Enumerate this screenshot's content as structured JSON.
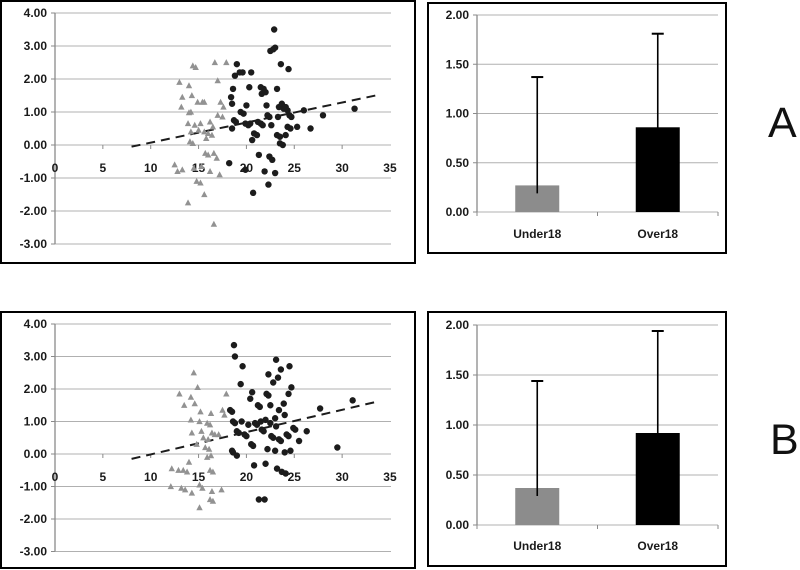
{
  "labels": {
    "a": "A",
    "b": "B"
  },
  "colors": {
    "grid": "#b0b0b0",
    "axis": "#8a8a8a",
    "text": "#1a1a1a",
    "frame": "#000000",
    "trend": "#1c1c1c",
    "under18_point": "#929292",
    "over18_point": "#1c1c1c",
    "under18_bar": "#8c8c8c",
    "over18_bar": "#000000"
  },
  "chart_data": [
    {
      "id": "scatter_a",
      "type": "scatter",
      "panel": "A",
      "title": "",
      "xlabel": "",
      "ylabel": "",
      "xlim": [
        0,
        35
      ],
      "ylim": [
        -3,
        4
      ],
      "xticks": [
        0,
        5,
        10,
        15,
        20,
        25,
        30,
        35
      ],
      "yticks": [
        4,
        3,
        2,
        1,
        0,
        -1,
        -2,
        -3
      ],
      "grid": true,
      "trendline": {
        "style": "dashed",
        "x1": 8,
        "y1": -0.05,
        "x2": 33.5,
        "y2": 1.5
      },
      "series": [
        {
          "name": "Under18",
          "marker": "triangle",
          "color_key": "under18_point",
          "points": [
            [
              14.4,
              2.4
            ],
            [
              14.7,
              2.35
            ],
            [
              16.7,
              2.5
            ],
            [
              17.9,
              2.5
            ],
            [
              13.0,
              1.9
            ],
            [
              14.0,
              1.8
            ],
            [
              17.0,
              1.95
            ],
            [
              14.3,
              1.5
            ],
            [
              13.3,
              1.45
            ],
            [
              14.9,
              1.3
            ],
            [
              15.4,
              1.3
            ],
            [
              15.6,
              1.3
            ],
            [
              13.2,
              1.15
            ],
            [
              14.2,
              1.0
            ],
            [
              17.3,
              1.3
            ],
            [
              17.6,
              1.15
            ],
            [
              17.0,
              0.9
            ],
            [
              17.5,
              0.85
            ],
            [
              14.0,
              0.98
            ],
            [
              13.9,
              0.65
            ],
            [
              14.6,
              0.6
            ],
            [
              15.2,
              0.65
            ],
            [
              16.2,
              0.7
            ],
            [
              16.5,
              0.55
            ],
            [
              14.2,
              0.4
            ],
            [
              15.0,
              0.45
            ],
            [
              15.6,
              0.4
            ],
            [
              16.0,
              0.35
            ],
            [
              14.1,
              0.1
            ],
            [
              14.4,
              0.05
            ],
            [
              15.8,
              0.2
            ],
            [
              16.4,
              0.3
            ],
            [
              15.7,
              -0.25
            ],
            [
              16.0,
              -0.3
            ],
            [
              16.6,
              -0.25
            ],
            [
              16.9,
              -0.4
            ],
            [
              12.5,
              -0.6
            ],
            [
              12.8,
              -0.8
            ],
            [
              13.3,
              -0.75
            ],
            [
              14.5,
              -0.7
            ],
            [
              15.3,
              -0.65
            ],
            [
              16.2,
              -0.8
            ],
            [
              17.2,
              -0.9
            ],
            [
              14.8,
              -1.1
            ],
            [
              15.2,
              -1.15
            ],
            [
              15.6,
              -1.5
            ],
            [
              13.9,
              -1.75
            ],
            [
              16.6,
              -2.4
            ]
          ]
        },
        {
          "name": "Over18",
          "marker": "circle",
          "color_key": "over18_point",
          "points": [
            [
              22.9,
              3.5
            ],
            [
              22.5,
              2.85
            ],
            [
              23.0,
              2.95
            ],
            [
              22.8,
              2.9
            ],
            [
              19.0,
              2.45
            ],
            [
              23.6,
              2.45
            ],
            [
              24.4,
              2.3
            ],
            [
              19.3,
              2.2
            ],
            [
              19.6,
              2.2
            ],
            [
              20.5,
              2.2
            ],
            [
              18.8,
              2.1
            ],
            [
              20.3,
              1.75
            ],
            [
              18.6,
              1.7
            ],
            [
              21.5,
              1.75
            ],
            [
              21.8,
              1.7
            ],
            [
              21.6,
              1.55
            ],
            [
              22.0,
              1.6
            ],
            [
              23.2,
              1.7
            ],
            [
              18.4,
              1.45
            ],
            [
              18.5,
              1.25
            ],
            [
              20.0,
              1.2
            ],
            [
              22.1,
              1.2
            ],
            [
              23.4,
              1.15
            ],
            [
              23.7,
              1.25
            ],
            [
              23.9,
              1.1
            ],
            [
              24.1,
              1.15
            ],
            [
              24.3,
              1.05
            ],
            [
              26.0,
              1.05
            ],
            [
              31.3,
              1.1
            ],
            [
              28.0,
              0.9
            ],
            [
              19.4,
              1.0
            ],
            [
              19.7,
              0.95
            ],
            [
              22.2,
              0.9
            ],
            [
              22.4,
              0.85
            ],
            [
              23.3,
              0.85
            ],
            [
              24.5,
              0.9
            ],
            [
              24.7,
              0.85
            ],
            [
              18.7,
              0.75
            ],
            [
              18.9,
              0.7
            ],
            [
              19.9,
              0.65
            ],
            [
              20.2,
              0.6
            ],
            [
              20.4,
              0.65
            ],
            [
              21.2,
              0.7
            ],
            [
              21.5,
              0.65
            ],
            [
              21.7,
              0.6
            ],
            [
              22.6,
              0.6
            ],
            [
              24.3,
              0.55
            ],
            [
              24.6,
              0.5
            ],
            [
              25.3,
              0.55
            ],
            [
              26.7,
              0.5
            ],
            [
              18.5,
              0.5
            ],
            [
              20.8,
              0.35
            ],
            [
              21.1,
              0.3
            ],
            [
              23.2,
              0.3
            ],
            [
              23.5,
              0.25
            ],
            [
              24.1,
              0.3
            ],
            [
              20.6,
              0.15
            ],
            [
              23.5,
              0.05
            ],
            [
              23.8,
              0.0
            ],
            [
              21.3,
              -0.3
            ],
            [
              22.4,
              -0.35
            ],
            [
              22.7,
              -0.45
            ],
            [
              18.2,
              -0.55
            ],
            [
              19.9,
              -0.75
            ],
            [
              21.9,
              -0.8
            ],
            [
              23.0,
              -0.85
            ],
            [
              22.3,
              -1.2
            ],
            [
              20.7,
              -1.45
            ]
          ]
        }
      ]
    },
    {
      "id": "bar_a",
      "type": "bar",
      "panel": "A",
      "title": "",
      "xlabel": "",
      "ylabel": "",
      "categories": [
        "Under18",
        "Over18"
      ],
      "values": [
        0.27,
        0.86
      ],
      "error_top": [
        1.37,
        1.81
      ],
      "ylim": [
        0,
        2
      ],
      "yticks": [
        2,
        1.5,
        1,
        0.5,
        0
      ],
      "grid": true,
      "bar_color_keys": [
        "under18_bar",
        "over18_bar"
      ]
    },
    {
      "id": "scatter_b",
      "type": "scatter",
      "panel": "B",
      "title": "",
      "xlabel": "",
      "ylabel": "",
      "xlim": [
        0,
        35
      ],
      "ylim": [
        -3,
        4
      ],
      "xticks": [
        0,
        5,
        10,
        15,
        20,
        25,
        30,
        35
      ],
      "yticks": [
        4,
        3,
        2,
        1,
        0,
        -1,
        -2,
        -3
      ],
      "grid": true,
      "trendline": {
        "style": "dashed",
        "x1": 8,
        "y1": -0.15,
        "x2": 33.5,
        "y2": 1.6
      },
      "series": [
        {
          "name": "Under18",
          "marker": "triangle",
          "color_key": "under18_point",
          "points": [
            [
              14.5,
              2.5
            ],
            [
              14.9,
              2.05
            ],
            [
              13.0,
              1.85
            ],
            [
              14.2,
              1.75
            ],
            [
              14.6,
              1.55
            ],
            [
              13.5,
              1.5
            ],
            [
              17.9,
              1.85
            ],
            [
              15.2,
              1.3
            ],
            [
              16.3,
              1.25
            ],
            [
              17.5,
              1.35
            ],
            [
              17.7,
              1.2
            ],
            [
              14.2,
              1.05
            ],
            [
              15.1,
              1.0
            ],
            [
              15.9,
              0.95
            ],
            [
              16.2,
              0.9
            ],
            [
              15.3,
              0.7
            ],
            [
              14.3,
              0.65
            ],
            [
              16.4,
              0.65
            ],
            [
              16.7,
              0.6
            ],
            [
              17.1,
              0.6
            ],
            [
              15.5,
              0.5
            ],
            [
              16.0,
              0.45
            ],
            [
              14.8,
              0.3
            ],
            [
              15.7,
              0.2
            ],
            [
              16.1,
              0.15
            ],
            [
              16.3,
              -0.05
            ],
            [
              15.9,
              -0.1
            ],
            [
              12.2,
              -0.45
            ],
            [
              12.9,
              -0.5
            ],
            [
              13.4,
              -0.5
            ],
            [
              14.0,
              -0.25
            ],
            [
              13.8,
              -0.55
            ],
            [
              16.2,
              -0.5
            ],
            [
              16.5,
              -0.55
            ],
            [
              12.1,
              -1.0
            ],
            [
              13.2,
              -1.05
            ],
            [
              13.6,
              -1.1
            ],
            [
              14.3,
              -1.2
            ],
            [
              15.1,
              -0.95
            ],
            [
              15.4,
              -1.05
            ],
            [
              16.4,
              -1.15
            ],
            [
              17.4,
              -1.1
            ],
            [
              16.2,
              -1.4
            ],
            [
              16.5,
              -1.45
            ],
            [
              15.1,
              -1.65
            ]
          ]
        },
        {
          "name": "Over18",
          "marker": "circle",
          "color_key": "over18_point",
          "points": [
            [
              18.7,
              3.35
            ],
            [
              18.8,
              3.0
            ],
            [
              19.6,
              2.7
            ],
            [
              23.1,
              2.9
            ],
            [
              22.3,
              2.45
            ],
            [
              23.3,
              2.35
            ],
            [
              23.6,
              2.6
            ],
            [
              24.5,
              2.7
            ],
            [
              19.4,
              2.15
            ],
            [
              22.8,
              2.2
            ],
            [
              24.7,
              2.05
            ],
            [
              20.4,
              1.7
            ],
            [
              20.6,
              1.9
            ],
            [
              22.1,
              1.85
            ],
            [
              22.3,
              1.8
            ],
            [
              21.2,
              1.5
            ],
            [
              21.4,
              1.45
            ],
            [
              22.5,
              1.5
            ],
            [
              23.4,
              1.35
            ],
            [
              23.9,
              1.55
            ],
            [
              24.4,
              1.85
            ],
            [
              18.3,
              1.35
            ],
            [
              18.5,
              1.3
            ],
            [
              18.6,
              1.0
            ],
            [
              18.8,
              0.95
            ],
            [
              19.5,
              1.0
            ],
            [
              20.2,
              0.9
            ],
            [
              20.9,
              0.95
            ],
            [
              21.1,
              0.9
            ],
            [
              21.5,
              1.0
            ],
            [
              22.0,
              1.05
            ],
            [
              22.5,
              0.95
            ],
            [
              23.0,
              1.1
            ],
            [
              23.1,
              0.85
            ],
            [
              24.0,
              1.2
            ],
            [
              24.9,
              0.8
            ],
            [
              25.1,
              0.75
            ],
            [
              27.7,
              1.4
            ],
            [
              31.1,
              1.65
            ],
            [
              19.0,
              0.7
            ],
            [
              19.2,
              0.65
            ],
            [
              19.8,
              0.6
            ],
            [
              20.0,
              0.55
            ],
            [
              20.5,
              0.3
            ],
            [
              20.7,
              0.25
            ],
            [
              21.6,
              0.75
            ],
            [
              21.8,
              0.7
            ],
            [
              22.6,
              0.55
            ],
            [
              22.8,
              0.5
            ],
            [
              23.4,
              0.45
            ],
            [
              23.6,
              0.4
            ],
            [
              24.2,
              0.6
            ],
            [
              24.4,
              0.55
            ],
            [
              25.5,
              0.4
            ],
            [
              26.3,
              0.7
            ],
            [
              29.5,
              0.2
            ],
            [
              18.5,
              0.1
            ],
            [
              18.6,
              0.05
            ],
            [
              19.0,
              -0.05
            ],
            [
              22.2,
              0.15
            ],
            [
              23.0,
              0.1
            ],
            [
              24.0,
              0.05
            ],
            [
              24.6,
              0.1
            ],
            [
              20.8,
              -0.35
            ],
            [
              22.0,
              -0.3
            ],
            [
              23.2,
              -0.45
            ],
            [
              23.7,
              -0.55
            ],
            [
              24.1,
              -0.6
            ],
            [
              21.3,
              -1.4
            ],
            [
              21.9,
              -1.4
            ]
          ]
        }
      ]
    },
    {
      "id": "bar_b",
      "type": "bar",
      "panel": "B",
      "title": "",
      "xlabel": "",
      "ylabel": "",
      "categories": [
        "Under18",
        "Over18"
      ],
      "values": [
        0.37,
        0.92
      ],
      "error_top": [
        1.44,
        1.94
      ],
      "ylim": [
        0,
        2
      ],
      "yticks": [
        2,
        1.5,
        1,
        0.5,
        0
      ],
      "grid": true,
      "bar_color_keys": [
        "under18_bar",
        "over18_bar"
      ]
    }
  ]
}
